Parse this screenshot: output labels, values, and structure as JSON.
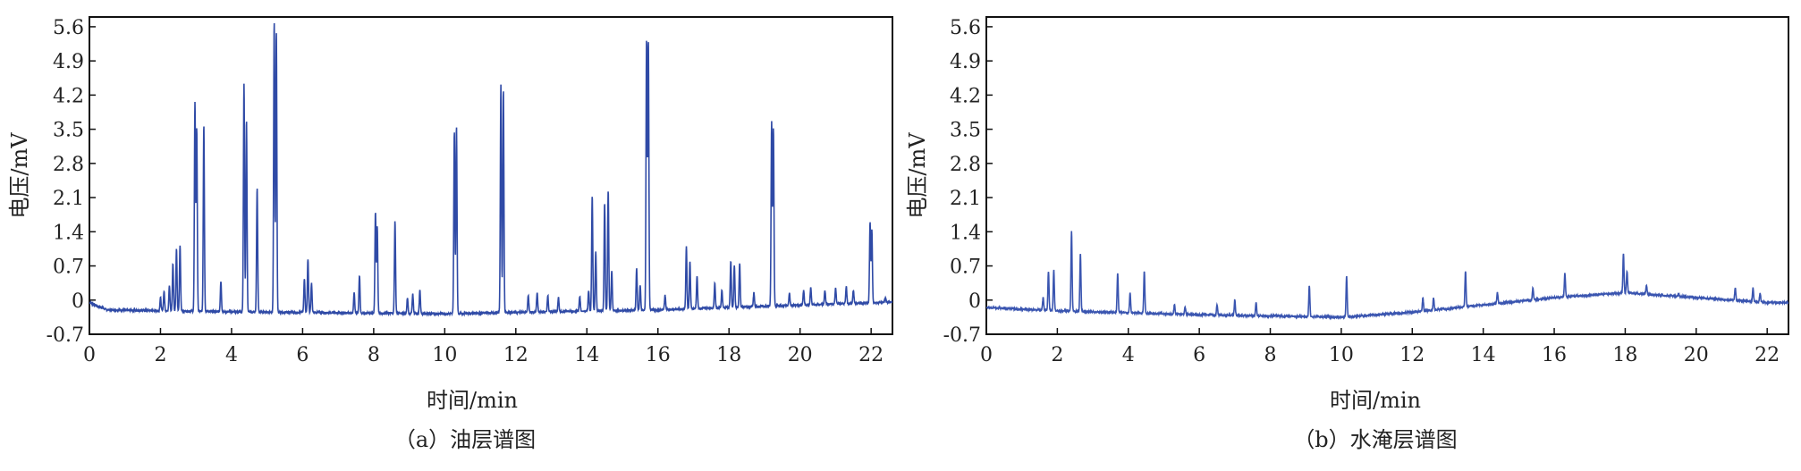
{
  "chart_data": [
    {
      "type": "line",
      "caption": "（a）油层谱图",
      "xlabel": "时间/min",
      "ylabel": "电压/mV",
      "xlim": [
        0,
        22.6
      ],
      "ylim": [
        -0.7,
        5.8
      ],
      "xticks": [
        "0",
        "2",
        "4",
        "6",
        "8",
        "10",
        "12",
        "14",
        "16",
        "18",
        "20",
        "22"
      ],
      "yticks": [
        "-0.7",
        "0",
        "0.7",
        "1.4",
        "2.1",
        "2.8",
        "3.5",
        "4.2",
        "4.9",
        "5.6"
      ],
      "color": "#2f4aa6",
      "baseline": [
        [
          0,
          -0.05
        ],
        [
          0.5,
          -0.2
        ],
        [
          4,
          -0.24
        ],
        [
          10,
          -0.28
        ],
        [
          16,
          -0.2
        ],
        [
          22.6,
          -0.04
        ]
      ],
      "peaks": [
        {
          "x": 2.0,
          "y": 0.05
        },
        {
          "x": 2.1,
          "y": 0.18
        },
        {
          "x": 2.25,
          "y": 0.3
        },
        {
          "x": 2.35,
          "y": 0.75
        },
        {
          "x": 2.45,
          "y": 1.05
        },
        {
          "x": 2.55,
          "y": 1.12
        },
        {
          "x": 2.97,
          "y": 4.05
        },
        {
          "x": 3.02,
          "y": 3.5
        },
        {
          "x": 3.22,
          "y": 3.6
        },
        {
          "x": 3.7,
          "y": 0.38
        },
        {
          "x": 4.35,
          "y": 4.45
        },
        {
          "x": 4.42,
          "y": 3.7
        },
        {
          "x": 4.72,
          "y": 2.3
        },
        {
          "x": 5.2,
          "y": 5.7
        },
        {
          "x": 5.26,
          "y": 5.5
        },
        {
          "x": 6.05,
          "y": 0.45
        },
        {
          "x": 6.15,
          "y": 0.85
        },
        {
          "x": 6.25,
          "y": 0.35
        },
        {
          "x": 7.45,
          "y": 0.15
        },
        {
          "x": 7.6,
          "y": 0.5
        },
        {
          "x": 8.05,
          "y": 1.8
        },
        {
          "x": 8.1,
          "y": 1.5
        },
        {
          "x": 8.6,
          "y": 1.62
        },
        {
          "x": 8.95,
          "y": 0.05
        },
        {
          "x": 9.1,
          "y": 0.12
        },
        {
          "x": 9.3,
          "y": 0.2
        },
        {
          "x": 10.27,
          "y": 3.45
        },
        {
          "x": 10.33,
          "y": 3.55
        },
        {
          "x": 11.58,
          "y": 4.4
        },
        {
          "x": 11.65,
          "y": 4.3
        },
        {
          "x": 12.35,
          "y": 0.1
        },
        {
          "x": 12.6,
          "y": 0.15
        },
        {
          "x": 12.9,
          "y": 0.1
        },
        {
          "x": 13.2,
          "y": 0.05
        },
        {
          "x": 13.8,
          "y": 0.08
        },
        {
          "x": 14.05,
          "y": 0.2
        },
        {
          "x": 14.15,
          "y": 2.15
        },
        {
          "x": 14.25,
          "y": 1.0
        },
        {
          "x": 14.5,
          "y": 2.0
        },
        {
          "x": 14.6,
          "y": 2.25
        },
        {
          "x": 14.7,
          "y": 0.6
        },
        {
          "x": 15.4,
          "y": 0.65
        },
        {
          "x": 15.5,
          "y": 0.3
        },
        {
          "x": 15.68,
          "y": 5.35
        },
        {
          "x": 15.73,
          "y": 5.3
        },
        {
          "x": 16.2,
          "y": 0.1
        },
        {
          "x": 16.8,
          "y": 1.1
        },
        {
          "x": 16.9,
          "y": 0.8
        },
        {
          "x": 17.1,
          "y": 0.5
        },
        {
          "x": 17.6,
          "y": 0.35
        },
        {
          "x": 17.8,
          "y": 0.2
        },
        {
          "x": 18.05,
          "y": 0.8
        },
        {
          "x": 18.15,
          "y": 0.72
        },
        {
          "x": 18.3,
          "y": 0.75
        },
        {
          "x": 18.7,
          "y": 0.15
        },
        {
          "x": 19.2,
          "y": 3.65
        },
        {
          "x": 19.25,
          "y": 3.5
        },
        {
          "x": 19.7,
          "y": 0.15
        },
        {
          "x": 20.1,
          "y": 0.2
        },
        {
          "x": 20.3,
          "y": 0.25
        },
        {
          "x": 20.7,
          "y": 0.2
        },
        {
          "x": 21.0,
          "y": 0.25
        },
        {
          "x": 21.3,
          "y": 0.28
        },
        {
          "x": 21.5,
          "y": 0.2
        },
        {
          "x": 21.97,
          "y": 1.6
        },
        {
          "x": 22.02,
          "y": 1.45
        },
        {
          "x": 22.4,
          "y": 0.05
        }
      ]
    },
    {
      "type": "line",
      "caption": "（b）水淹层谱图",
      "xlabel": "时间/min",
      "ylabel": "电压/mV",
      "xlim": [
        0,
        22.6
      ],
      "ylim": [
        -0.7,
        5.8
      ],
      "xticks": [
        "0",
        "2",
        "4",
        "6",
        "8",
        "10",
        "12",
        "14",
        "16",
        "18",
        "20",
        "22"
      ],
      "yticks": [
        "-0.7",
        "0",
        "0.7",
        "1.4",
        "2.1",
        "2.8",
        "3.5",
        "4.2",
        "4.9",
        "5.6"
      ],
      "color": "#3a55b0",
      "baseline": [
        [
          0,
          -0.15
        ],
        [
          2,
          -0.22
        ],
        [
          6,
          -0.3
        ],
        [
          10,
          -0.35
        ],
        [
          12,
          -0.25
        ],
        [
          14,
          -0.1
        ],
        [
          16,
          0.05
        ],
        [
          18,
          0.15
        ],
        [
          20,
          0.05
        ],
        [
          22,
          -0.05
        ]
      ],
      "peaks": [
        {
          "x": 1.6,
          "y": 0.05
        },
        {
          "x": 1.75,
          "y": 0.6
        },
        {
          "x": 1.9,
          "y": 0.62
        },
        {
          "x": 2.4,
          "y": 1.4
        },
        {
          "x": 2.65,
          "y": 0.95
        },
        {
          "x": 3.7,
          "y": 0.55
        },
        {
          "x": 4.05,
          "y": 0.15
        },
        {
          "x": 4.45,
          "y": 0.6
        },
        {
          "x": 5.3,
          "y": -0.1
        },
        {
          "x": 5.6,
          "y": -0.15
        },
        {
          "x": 6.5,
          "y": -0.1
        },
        {
          "x": 7.0,
          "y": 0.0
        },
        {
          "x": 7.6,
          "y": -0.05
        },
        {
          "x": 9.1,
          "y": 0.3
        },
        {
          "x": 10.15,
          "y": 0.5
        },
        {
          "x": 12.3,
          "y": 0.05
        },
        {
          "x": 12.6,
          "y": 0.05
        },
        {
          "x": 13.5,
          "y": 0.6
        },
        {
          "x": 14.4,
          "y": 0.15
        },
        {
          "x": 15.4,
          "y": 0.25
        },
        {
          "x": 16.3,
          "y": 0.55
        },
        {
          "x": 17.95,
          "y": 0.95
        },
        {
          "x": 18.05,
          "y": 0.6
        },
        {
          "x": 18.6,
          "y": 0.3
        },
        {
          "x": 19.5,
          "y": 0.12
        },
        {
          "x": 21.1,
          "y": 0.25
        },
        {
          "x": 21.6,
          "y": 0.25
        },
        {
          "x": 21.8,
          "y": 0.15
        }
      ]
    }
  ]
}
